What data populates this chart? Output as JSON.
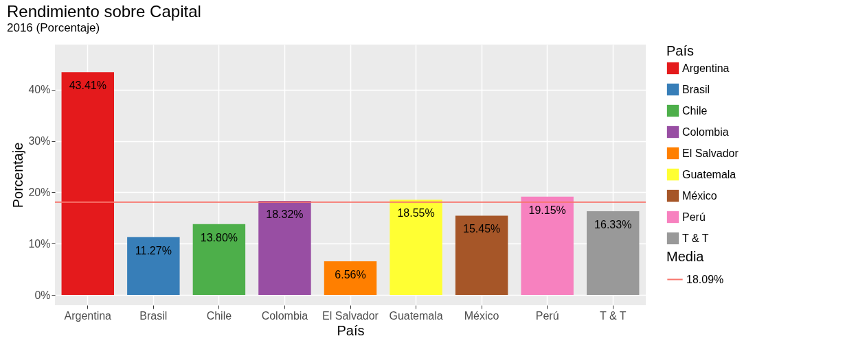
{
  "chart_data": {
    "type": "bar",
    "title": "Rendimiento sobre Capital",
    "subtitle": "2016 (Porcentaje)",
    "xlabel": "País",
    "ylabel": "Porcentaje",
    "legend_title": "País",
    "categories": [
      "Argentina",
      "Brasil",
      "Chile",
      "Colombia",
      "El Salvador",
      "Guatemala",
      "México",
      "Perú",
      "T & T"
    ],
    "series": [
      {
        "name": "Argentina",
        "color": "#e41a1c",
        "x": [
          "Argentina"
        ],
        "values": [
          43.41
        ],
        "value_labels": [
          "43.41%"
        ]
      },
      {
        "name": "Brasil",
        "color": "#377eb8",
        "x": [
          "Brasil"
        ],
        "values": [
          11.27
        ],
        "value_labels": [
          "11.27%"
        ]
      },
      {
        "name": "Chile",
        "color": "#4daf4a",
        "x": [
          "Chile"
        ],
        "values": [
          13.8
        ],
        "value_labels": [
          "13.80%"
        ]
      },
      {
        "name": "Colombia",
        "color": "#984ea3",
        "x": [
          "Colombia"
        ],
        "values": [
          18.32
        ],
        "value_labels": [
          "18.32%"
        ]
      },
      {
        "name": "El Salvador",
        "color": "#ff7f00",
        "x": [
          "El Salvador"
        ],
        "values": [
          6.56
        ],
        "value_labels": [
          "6.56%"
        ]
      },
      {
        "name": "Guatemala",
        "color": "#ffff33",
        "x": [
          "Guatemala"
        ],
        "values": [
          18.55
        ],
        "value_labels": [
          "18.55%"
        ]
      },
      {
        "name": "México",
        "color": "#a65628",
        "x": [
          "México"
        ],
        "values": [
          15.45
        ],
        "value_labels": [
          "15.45%"
        ]
      },
      {
        "name": "Perú",
        "color": "#f781bf",
        "x": [
          "Perú"
        ],
        "values": [
          19.15
        ],
        "value_labels": [
          "19.15%"
        ]
      },
      {
        "name": "T & T",
        "color": "#999999",
        "x": [
          "T & T"
        ],
        "values": [
          16.33
        ],
        "value_labels": [
          "16.33%"
        ]
      }
    ],
    "ylim": [
      -2,
      48.8
    ],
    "yticks": [
      {
        "value": 0,
        "label": "0%"
      },
      {
        "value": 10,
        "label": "10%"
      },
      {
        "value": 20,
        "label": "20%"
      },
      {
        "value": 30,
        "label": "30%"
      },
      {
        "value": 40,
        "label": "40%"
      }
    ],
    "ref_lines": [
      {
        "axis": "y",
        "value": 18.09,
        "label": "18.09%",
        "color": "#f8766d"
      }
    ],
    "annotations": [
      "Media"
    ],
    "grid": true,
    "legend": "right"
  }
}
